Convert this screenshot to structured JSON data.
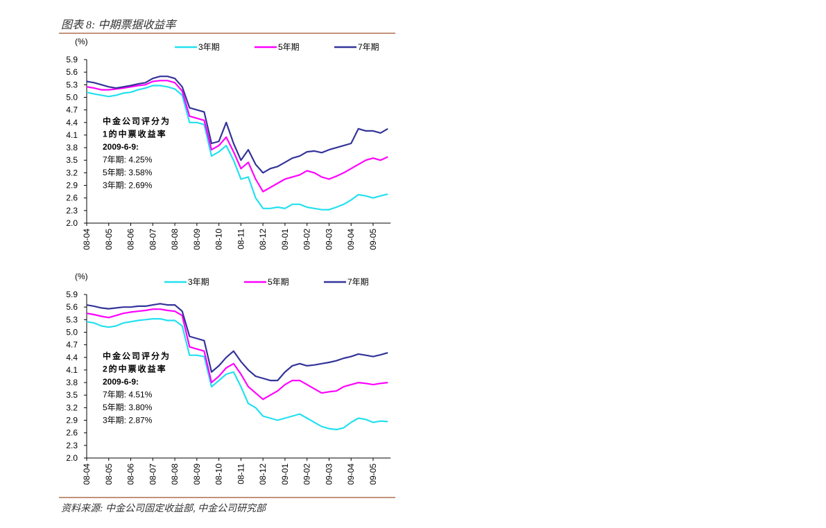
{
  "page": {
    "title": "图表 8: 中期票据收益率",
    "source": "资料来源: 中金公司固定收益部, 中金公司研究部"
  },
  "chart_data": [
    {
      "type": "line",
      "ylabel": "(%)",
      "categories": [
        "08-04",
        null,
        null,
        "08-05",
        null,
        null,
        "08-06",
        null,
        null,
        "08-07",
        null,
        null,
        "08-08",
        null,
        null,
        "08-09",
        null,
        null,
        "08-10",
        null,
        null,
        "08-11",
        null,
        null,
        "08-12",
        null,
        null,
        "09-01",
        null,
        null,
        "09-02",
        null,
        null,
        "09-03",
        null,
        null,
        "09-04",
        null,
        null,
        "09-05",
        null,
        null
      ],
      "ylim": [
        2.0,
        5.9
      ],
      "yticks": [
        {
          "value": 2.0,
          "label": "2.0"
        },
        2.3,
        2.6,
        2.9,
        3.2,
        3.5,
        3.8,
        4.1,
        4.4,
        4.7,
        {
          "value": 5.0,
          "label": "5.0"
        },
        5.3,
        5.6,
        5.9
      ],
      "annotation": [
        "中金公司评分为",
        "1的中票收益率",
        "2009-6-9:",
        "7年期: 4.25%",
        "5年期: 3.58%",
        "3年期: 2.69%"
      ],
      "series": [
        {
          "name": "3年期",
          "color": "#22e0f0",
          "values": [
            5.12,
            5.08,
            5.05,
            5.02,
            5.05,
            5.1,
            5.12,
            5.18,
            5.22,
            5.28,
            5.28,
            5.25,
            5.2,
            5.05,
            4.4,
            4.4,
            4.35,
            3.6,
            3.7,
            3.85,
            3.5,
            3.05,
            3.1,
            2.6,
            2.35,
            2.35,
            2.38,
            2.35,
            2.45,
            2.45,
            2.38,
            2.35,
            2.32,
            2.32,
            2.38,
            2.45,
            2.55,
            2.68,
            2.65,
            2.6,
            2.65,
            2.69
          ]
        },
        {
          "name": "5年期",
          "color": "#ff00ff",
          "values": [
            5.25,
            5.22,
            5.18,
            5.18,
            5.2,
            5.22,
            5.25,
            5.28,
            5.3,
            5.38,
            5.4,
            5.4,
            5.35,
            5.15,
            4.55,
            4.5,
            4.45,
            3.75,
            3.85,
            4.05,
            3.7,
            3.3,
            3.45,
            3.05,
            2.75,
            2.85,
            2.95,
            3.05,
            3.1,
            3.15,
            3.25,
            3.2,
            3.1,
            3.05,
            3.12,
            3.2,
            3.3,
            3.4,
            3.5,
            3.55,
            3.5,
            3.58
          ]
        },
        {
          "name": "7年期",
          "color": "#333399",
          "values": [
            5.38,
            5.35,
            5.3,
            5.25,
            5.22,
            5.25,
            5.28,
            5.32,
            5.35,
            5.45,
            5.5,
            5.5,
            5.45,
            5.25,
            4.75,
            4.7,
            4.65,
            3.9,
            3.95,
            4.4,
            3.9,
            3.5,
            3.75,
            3.4,
            3.2,
            3.3,
            3.35,
            3.45,
            3.55,
            3.6,
            3.7,
            3.72,
            3.68,
            3.75,
            3.8,
            3.85,
            3.9,
            4.25,
            4.2,
            4.2,
            4.15,
            4.25
          ]
        }
      ]
    },
    {
      "type": "line",
      "ylabel": "(%)",
      "categories": [
        "08-04",
        null,
        null,
        "08-05",
        null,
        null,
        "08-06",
        null,
        null,
        "08-07",
        null,
        null,
        "08-08",
        null,
        null,
        "08-09",
        null,
        null,
        "08-10",
        null,
        null,
        "08-11",
        null,
        null,
        "08-12",
        null,
        null,
        "09-01",
        null,
        null,
        "09-02",
        null,
        null,
        "09-03",
        null,
        null,
        "09-04",
        null,
        null,
        "09-05",
        null,
        null
      ],
      "ylim": [
        2.0,
        5.9
      ],
      "yticks": [
        {
          "value": 2.0,
          "label": "2.0"
        },
        2.3,
        2.6,
        2.9,
        3.2,
        3.5,
        3.8,
        4.1,
        4.4,
        4.7,
        {
          "value": 5.0,
          "label": "5.0"
        },
        5.3,
        5.6,
        5.9
      ],
      "annotation": [
        "中金公司评分为",
        "2的中票收益率",
        "2009-6-9:",
        "7年期: 4.51%",
        "5年期: 3.80%",
        "3年期: 2.87%"
      ],
      "series": [
        {
          "name": "3年期",
          "color": "#22e0f0",
          "values": [
            5.25,
            5.22,
            5.15,
            5.12,
            5.15,
            5.22,
            5.25,
            5.28,
            5.3,
            5.32,
            5.32,
            5.28,
            5.28,
            5.15,
            4.45,
            4.45,
            4.42,
            3.7,
            3.85,
            4.0,
            4.05,
            3.7,
            3.3,
            3.2,
            3.0,
            2.95,
            2.9,
            2.95,
            3.0,
            3.05,
            2.95,
            2.85,
            2.75,
            2.7,
            2.68,
            2.72,
            2.85,
            2.95,
            2.92,
            2.85,
            2.88,
            2.87
          ]
        },
        {
          "name": "5年期",
          "color": "#ff00ff",
          "values": [
            5.45,
            5.42,
            5.38,
            5.35,
            5.4,
            5.45,
            5.48,
            5.5,
            5.52,
            5.55,
            5.55,
            5.52,
            5.5,
            5.4,
            4.65,
            4.6,
            4.55,
            3.8,
            3.95,
            4.15,
            4.25,
            4.0,
            3.7,
            3.55,
            3.4,
            3.5,
            3.6,
            3.75,
            3.85,
            3.85,
            3.75,
            3.65,
            3.55,
            3.58,
            3.6,
            3.7,
            3.75,
            3.8,
            3.78,
            3.75,
            3.78,
            3.8
          ]
        },
        {
          "name": "7年期",
          "color": "#333399",
          "values": [
            5.65,
            5.62,
            5.58,
            5.56,
            5.58,
            5.6,
            5.6,
            5.62,
            5.62,
            5.65,
            5.68,
            5.65,
            5.65,
            5.5,
            4.9,
            4.85,
            4.8,
            4.05,
            4.2,
            4.4,
            4.55,
            4.3,
            4.1,
            3.95,
            3.9,
            3.85,
            3.85,
            4.05,
            4.2,
            4.25,
            4.2,
            4.22,
            4.25,
            4.28,
            4.32,
            4.38,
            4.42,
            4.48,
            4.45,
            4.42,
            4.46,
            4.51
          ]
        }
      ]
    }
  ]
}
